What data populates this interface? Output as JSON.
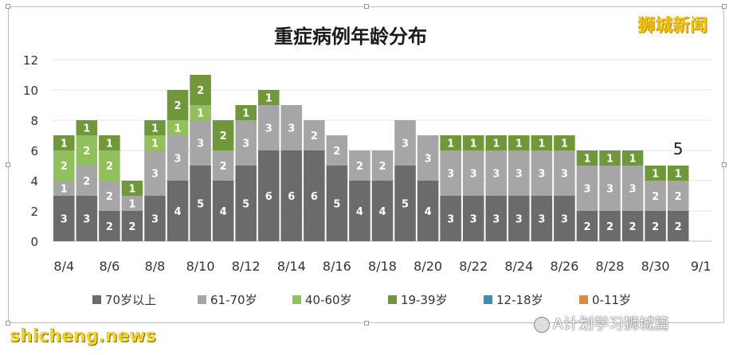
{
  "watermarks": {
    "brand": "狮城新闻",
    "left": "shicheng.news",
    "right": "A计划学习狮城篇"
  },
  "chart_data": {
    "type": "bar",
    "stacked": true,
    "title": "重症病例年龄分布",
    "ylim": [
      0,
      12
    ],
    "y_ticks": [
      0,
      2,
      4,
      6,
      8,
      10,
      12
    ],
    "grid": true,
    "legend_position": "bottom",
    "x_tick_labels": [
      "8/4",
      "8/6",
      "8/8",
      "8/10",
      "8/12",
      "8/14",
      "8/16",
      "8/18",
      "8/20",
      "8/22",
      "8/24",
      "8/26",
      "8/28",
      "8/30",
      "9/1"
    ],
    "categories": [
      "8/4",
      "8/5",
      "8/6",
      "8/7",
      "8/8",
      "8/9",
      "8/10",
      "8/11",
      "8/12",
      "8/13",
      "8/14",
      "8/15",
      "8/16",
      "8/17",
      "8/18",
      "8/19",
      "8/20",
      "8/21",
      "8/22",
      "8/23",
      "8/24",
      "8/25",
      "8/26",
      "8/27",
      "8/28",
      "8/29",
      "8/30",
      "8/31",
      "9/1"
    ],
    "series": [
      {
        "name": "70岁以上",
        "color": "#6b6b6b",
        "values": [
          3,
          3,
          2,
          2,
          3,
          4,
          5,
          4,
          5,
          6,
          6,
          6,
          5,
          4,
          4,
          5,
          4,
          3,
          3,
          3,
          3,
          3,
          3,
          2,
          2,
          2,
          2,
          2,
          0
        ]
      },
      {
        "name": "61-70岁",
        "color": "#a6a6a6",
        "values": [
          1,
          2,
          2,
          1,
          3,
          3,
          3,
          2,
          3,
          3,
          3,
          2,
          2,
          2,
          2,
          3,
          3,
          3,
          3,
          3,
          3,
          3,
          3,
          3,
          3,
          3,
          2,
          2,
          0
        ]
      },
      {
        "name": "40-60岁",
        "color": "#92c05c",
        "values": [
          2,
          2,
          2,
          0,
          1,
          1,
          1,
          0,
          0,
          0,
          0,
          0,
          0,
          0,
          0,
          0,
          0,
          0,
          0,
          0,
          0,
          0,
          0,
          0,
          0,
          0,
          0,
          0,
          0
        ]
      },
      {
        "name": "19-39岁",
        "color": "#70973a",
        "values": [
          1,
          1,
          1,
          1,
          1,
          2,
          2,
          2,
          1,
          1,
          0,
          0,
          0,
          0,
          0,
          0,
          0,
          1,
          1,
          1,
          1,
          1,
          1,
          1,
          1,
          1,
          1,
          1,
          0
        ]
      },
      {
        "name": "12-18岁",
        "color": "#3a8fb0",
        "values": [
          0,
          0,
          0,
          0,
          0,
          0,
          0,
          0,
          0,
          0,
          0,
          0,
          0,
          0,
          0,
          0,
          0,
          0,
          0,
          0,
          0,
          0,
          0,
          0,
          0,
          0,
          0,
          0,
          0
        ]
      },
      {
        "name": "0-11岁",
        "color": "#e08a3a",
        "values": [
          0,
          0,
          0,
          0,
          0,
          0,
          0,
          0,
          0,
          0,
          0,
          0,
          0,
          0,
          0,
          0,
          0,
          0,
          0,
          0,
          0,
          0,
          0,
          0,
          0,
          0,
          0,
          0,
          0
        ]
      }
    ],
    "annotations": [
      {
        "category": "8/31",
        "text": "5"
      }
    ]
  }
}
